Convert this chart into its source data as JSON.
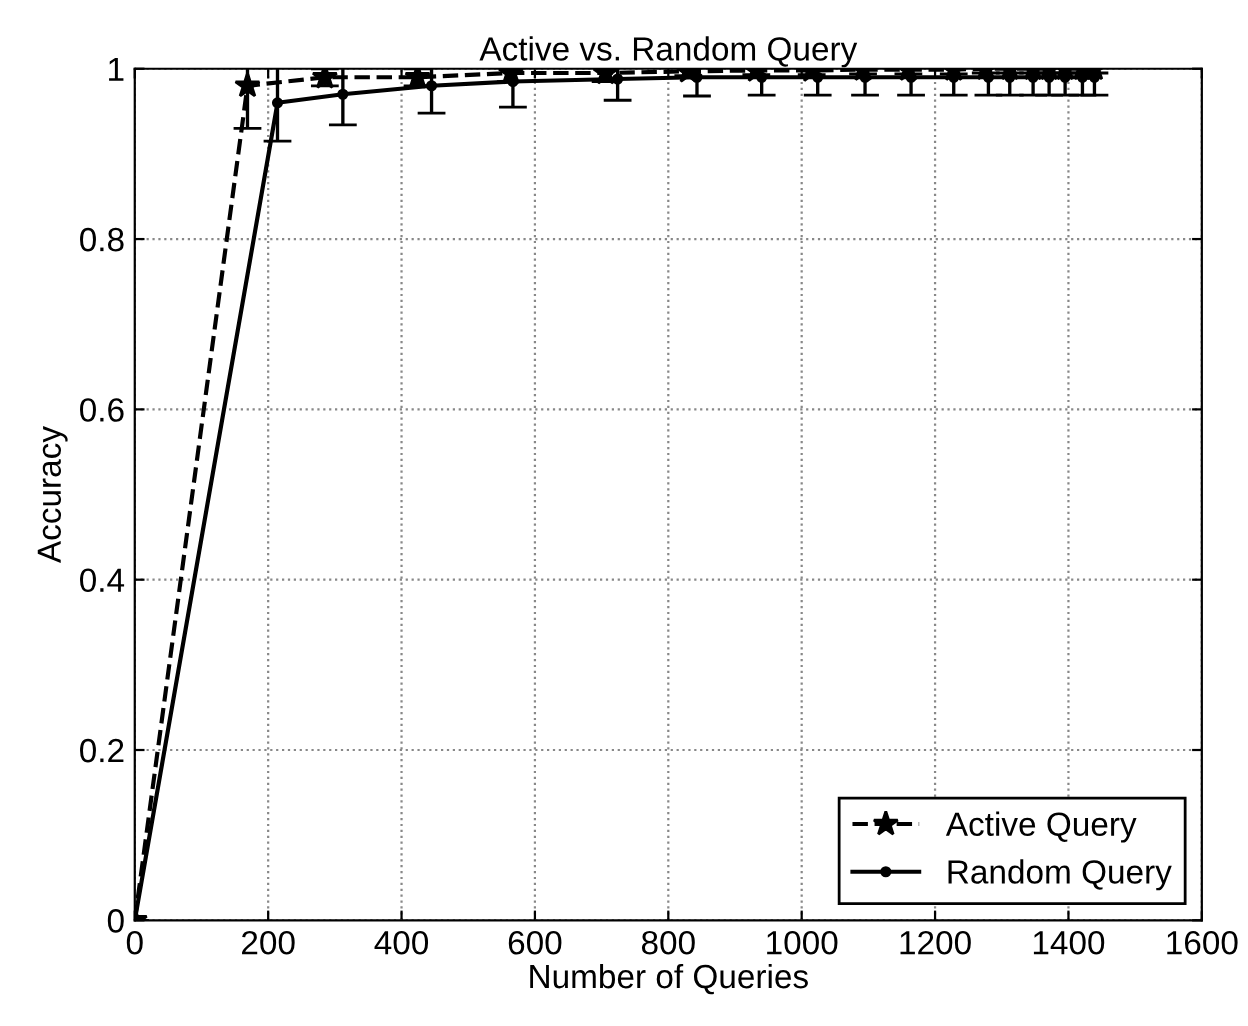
{
  "chart_data": {
    "type": "line",
    "title": "Active vs. Random Query",
    "xlabel": "Number of Queries",
    "ylabel": "Accuracy",
    "xlim": [
      0,
      1600
    ],
    "xticks": [
      0,
      200,
      400,
      600,
      800,
      1000,
      1200,
      1400,
      1600
    ],
    "ylim": [
      0,
      1
    ],
    "yticks": [
      0,
      0.2,
      0.4,
      0.6,
      0.8,
      1
    ],
    "grid": true,
    "legend": "bottom right",
    "series": [
      {
        "name": "Active Query",
        "color": "#000000",
        "line_style": "dashed",
        "marker": "star",
        "x": [
          0,
          169,
          285,
          424,
          564,
          706,
          830,
          932,
          1015,
          1092,
          1160,
          1228,
          1276,
          1312,
          1347,
          1371,
          1395,
          1421,
          1439
        ],
        "values": [
          0,
          0.98,
          0.99,
          0.99,
          0.995,
          0.995,
          0.997,
          0.998,
          0.998,
          0.999,
          0.999,
          0.999,
          1,
          1,
          1,
          1,
          1,
          1,
          1
        ],
        "errors": [
          null,
          0.05,
          0.01,
          0.01,
          0.01,
          0.01,
          0.005,
          0.005,
          0.005,
          0.005,
          0.005,
          0.005,
          0.005,
          0.005,
          0.005,
          0.005,
          0.005,
          0.005,
          0.005
        ]
      },
      {
        "name": "Random Query",
        "color": "#000000",
        "line_style": "solid",
        "marker": "circle",
        "x": [
          0,
          214,
          312,
          445,
          567,
          724,
          843,
          940,
          1024,
          1095,
          1164,
          1228,
          1280,
          1312,
          1347,
          1371,
          1395,
          1421,
          1439
        ],
        "values": [
          0,
          0.96,
          0.97,
          0.98,
          0.985,
          0.988,
          0.99,
          0.99,
          0.99,
          0.99,
          0.99,
          0.99,
          0.99,
          0.99,
          0.99,
          0.99,
          0.99,
          0.99,
          0.99
        ],
        "errors": [
          null,
          0.045,
          0.036,
          0.032,
          0.03,
          0.025,
          0.022,
          0.021,
          0.021,
          0.021,
          0.021,
          0.021,
          0.021,
          0.021,
          0.021,
          0.021,
          0.021,
          0.021,
          0.021
        ]
      }
    ]
  }
}
